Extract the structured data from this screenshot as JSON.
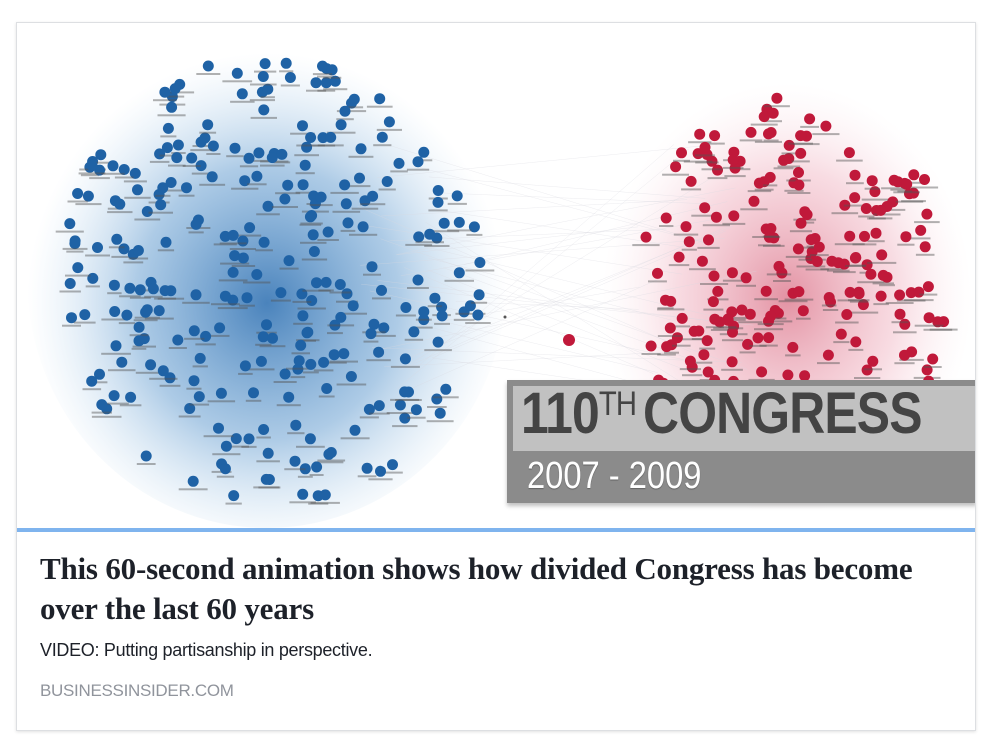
{
  "link_card": {
    "media": {
      "description": "Network graph of House members: Democrats cluster (blue) and Republicans cluster (red)",
      "banner": {
        "congress_number": "110",
        "ordinal_suffix": "TH",
        "congress_word": "CONGRESS",
        "years": "2007 - 2009"
      },
      "colors": {
        "democrat": "#1f62a5",
        "republican": "#c0193a",
        "accent_line": "#7fb4ee"
      }
    },
    "headline": "This 60-second animation shows how divided Congress has become over the last 60 years",
    "description": "VIDEO: Putting partisanship in perspective.",
    "domain": "BUSINESSINSIDER.COM"
  }
}
